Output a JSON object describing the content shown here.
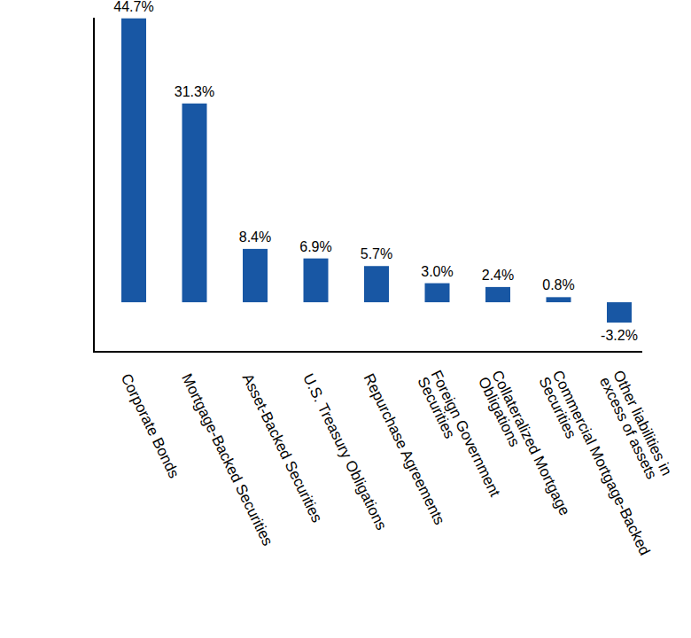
{
  "chart_data": {
    "type": "bar",
    "categories": [
      "Corporate Bonds",
      "Mortgage-Backed Securities",
      "Asset-Backed Securities",
      "U.S. Treasury Obligations",
      "Repurchase Agreements",
      "Foreign Government Securities",
      "Collateralized Mortgage Obligations",
      "Commercial Mortgage-Backed Securities",
      "Other liabilities in excess of assets"
    ],
    "values": [
      44.7,
      31.3,
      8.4,
      6.9,
      5.7,
      3.0,
      2.4,
      0.8,
      -3.2
    ],
    "value_labels": [
      "44.7%",
      "31.3%",
      "8.4%",
      "6.9%",
      "5.7%",
      "3.0%",
      "2.4%",
      "0.8%",
      "-3.2%"
    ],
    "color": "#1857a4",
    "ylim": [
      -7.8,
      44.8
    ],
    "data_labels": true,
    "tick_labels": false,
    "grid": false
  }
}
